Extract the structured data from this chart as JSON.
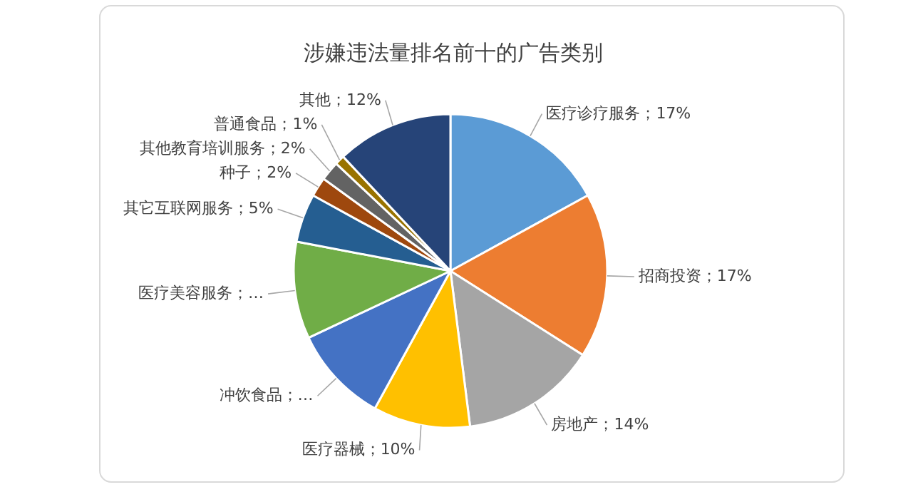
{
  "chart_data": {
    "type": "pie",
    "title": "涉嫌违法量排名前十的广告类别",
    "categories": [
      "医疗诊疗服务",
      "招商投资",
      "房地产",
      "医疗器械",
      "冲饮食品",
      "医疗美容服务",
      "其它互联网服务",
      "种子",
      "其他教育培训服务",
      "普通食品",
      "其他"
    ],
    "values": [
      17,
      17,
      14,
      10,
      10,
      10,
      5,
      2,
      2,
      1,
      12
    ],
    "value_labels": [
      "；17%",
      "；17%",
      "；14%",
      "；10%",
      "；…",
      "；…",
      "；5%",
      "；2%",
      "；2%",
      "；1%",
      "；12%"
    ],
    "colors": [
      "#5b9bd5",
      "#ed7d31",
      "#a5a5a5",
      "#ffc000",
      "#4472c4",
      "#70ad47",
      "#255e91",
      "#9e480e",
      "#636363",
      "#997300",
      "#264478"
    ]
  }
}
